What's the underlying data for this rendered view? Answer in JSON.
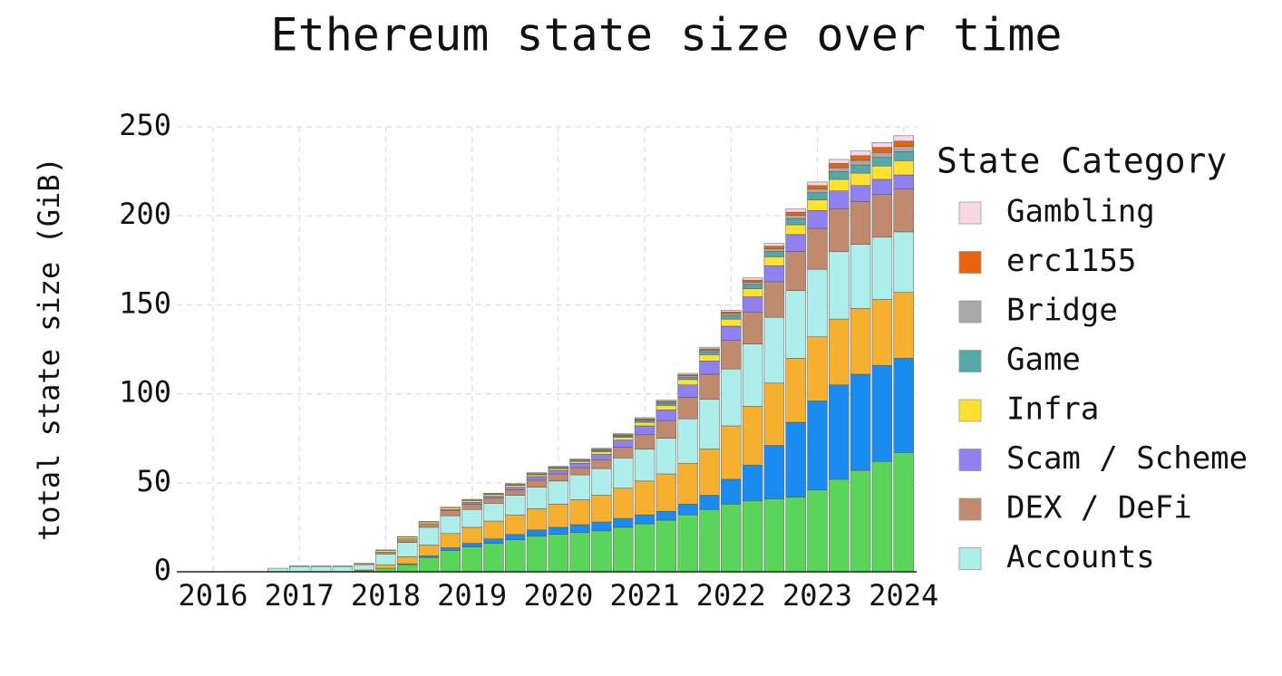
{
  "chart_data": {
    "type": "stacked_bar",
    "title": "Ethereum state size over time",
    "y_label": "total state size (GiB)",
    "legend_title": "State Category",
    "legend_position": "right",
    "grid": true,
    "xlim": [
      2015.58,
      2024.15
    ],
    "xticks": [
      2016,
      2017,
      2018,
      2019,
      2020,
      2021,
      2022,
      2023,
      2024
    ],
    "ylim": [
      0,
      250
    ],
    "yticks": [
      0,
      50,
      100,
      150,
      200,
      250
    ],
    "x": [
      2016.75,
      2017,
      2017.25,
      2017.5,
      2017.75,
      2018,
      2018.25,
      2018.5,
      2018.75,
      2019,
      2019.25,
      2019.5,
      2019.75,
      2020,
      2020.25,
      2020.5,
      2020.75,
      2021,
      2021.25,
      2021.5,
      2021.75,
      2022,
      2022.25,
      2022.5,
      2022.75,
      2023,
      2023.25,
      2023.5,
      2023.75,
      2024
    ],
    "series": [
      {
        "color": "#5ad45a",
        "values": [
          0,
          0,
          0,
          0,
          0.5,
          2,
          4,
          8,
          12,
          14,
          16,
          18,
          20,
          21,
          22,
          23,
          25,
          27,
          29,
          32,
          35,
          38,
          40,
          41,
          42,
          46,
          52,
          57,
          62,
          67
        ]
      },
      {
        "color": "#1a8cf0",
        "values": [
          0,
          0,
          0,
          0,
          0,
          0,
          0.5,
          1,
          1.5,
          2,
          2.5,
          3,
          3.5,
          4,
          4.5,
          5,
          5,
          5,
          5,
          6,
          8,
          14,
          20,
          30,
          42,
          50,
          53,
          54,
          54,
          53
        ]
      },
      {
        "color": "#f5b030",
        "values": [
          0,
          0,
          0,
          0,
          0.5,
          2,
          4,
          6,
          8,
          9,
          10,
          11,
          12,
          13,
          14,
          15,
          17,
          19,
          21,
          23,
          26,
          30,
          33,
          35,
          36,
          36,
          37,
          37,
          37,
          37
        ]
      },
      {
        "name": "Accounts",
        "color": "#aeeeea",
        "values": [
          2,
          3,
          3,
          3,
          3,
          6,
          8,
          10,
          10,
          10,
          10,
          11,
          12,
          13,
          14,
          15,
          17,
          18,
          20,
          25,
          28,
          32,
          35,
          37,
          38,
          38,
          38,
          36,
          35,
          34
        ]
      },
      {
        "name": "DEX / DeFi",
        "color": "#c08a6e",
        "values": [
          0,
          0,
          0,
          0,
          0,
          1,
          2,
          2,
          3,
          3,
          3,
          3,
          4,
          4,
          4,
          5,
          6,
          8,
          10,
          12,
          14,
          16,
          18,
          20,
          22,
          23,
          24,
          24,
          24,
          24
        ]
      },
      {
        "name": "Scam / Scheme",
        "color": "#9080f0",
        "values": [
          0,
          0,
          0,
          0,
          0,
          0,
          0,
          0,
          0.5,
          1,
          1,
          1.5,
          2,
          2,
          2.5,
          3,
          4,
          5,
          6,
          7,
          7.5,
          8,
          8.5,
          9,
          9.5,
          10,
          10,
          9,
          8.5,
          8
        ]
      },
      {
        "name": "Infra",
        "color": "#ffe033",
        "values": [
          0,
          0,
          0,
          0,
          0.5,
          1,
          1,
          1,
          1,
          1,
          1,
          1,
          1,
          1,
          1,
          1.5,
          1.5,
          2,
          2.5,
          3,
          3.5,
          4,
          4.5,
          5,
          5.5,
          6,
          6.5,
          7,
          7.5,
          8
        ]
      },
      {
        "name": "Game",
        "color": "#56a8a8",
        "values": [
          0,
          0,
          0,
          0,
          0,
          0,
          0,
          0,
          0,
          0.3,
          0.3,
          0.4,
          0.5,
          0.5,
          0.6,
          0.7,
          0.8,
          1,
          1.2,
          1.4,
          1.7,
          2,
          2.5,
          3,
          3.5,
          4,
          4.3,
          4.6,
          4.8,
          5
        ]
      },
      {
        "name": "Bridge",
        "color": "#a9a9a9",
        "values": [
          0,
          0,
          0,
          0,
          0,
          0,
          0,
          0,
          0,
          0,
          0,
          0,
          0,
          0,
          0,
          0.3,
          0.4,
          0.5,
          0.6,
          0.7,
          0.8,
          1,
          1.2,
          1.5,
          1.8,
          2,
          2.3,
          2.6,
          2.8,
          3
        ]
      },
      {
        "name": "erc1155",
        "color": "#e8630a",
        "values": [
          0,
          0,
          0,
          0,
          0,
          0,
          0,
          0,
          0,
          0,
          0,
          0.2,
          0.2,
          0.3,
          0.3,
          0.4,
          0.4,
          0.5,
          0.5,
          0.6,
          0.8,
          1,
          1.2,
          1.5,
          1.8,
          2,
          2.3,
          2.6,
          2.8,
          3
        ]
      },
      {
        "name": "Gambling",
        "color": "#f9d6e3",
        "values": [
          0,
          0.3,
          0.3,
          0.3,
          0.3,
          0.3,
          0.3,
          0.3,
          0.3,
          0.4,
          0.4,
          0.4,
          0.5,
          0.5,
          0.5,
          0.5,
          0.6,
          0.6,
          0.7,
          0.8,
          0.9,
          1,
          1.2,
          1.5,
          1.8,
          2,
          2.3,
          2.6,
          2.8,
          3
        ]
      }
    ]
  }
}
